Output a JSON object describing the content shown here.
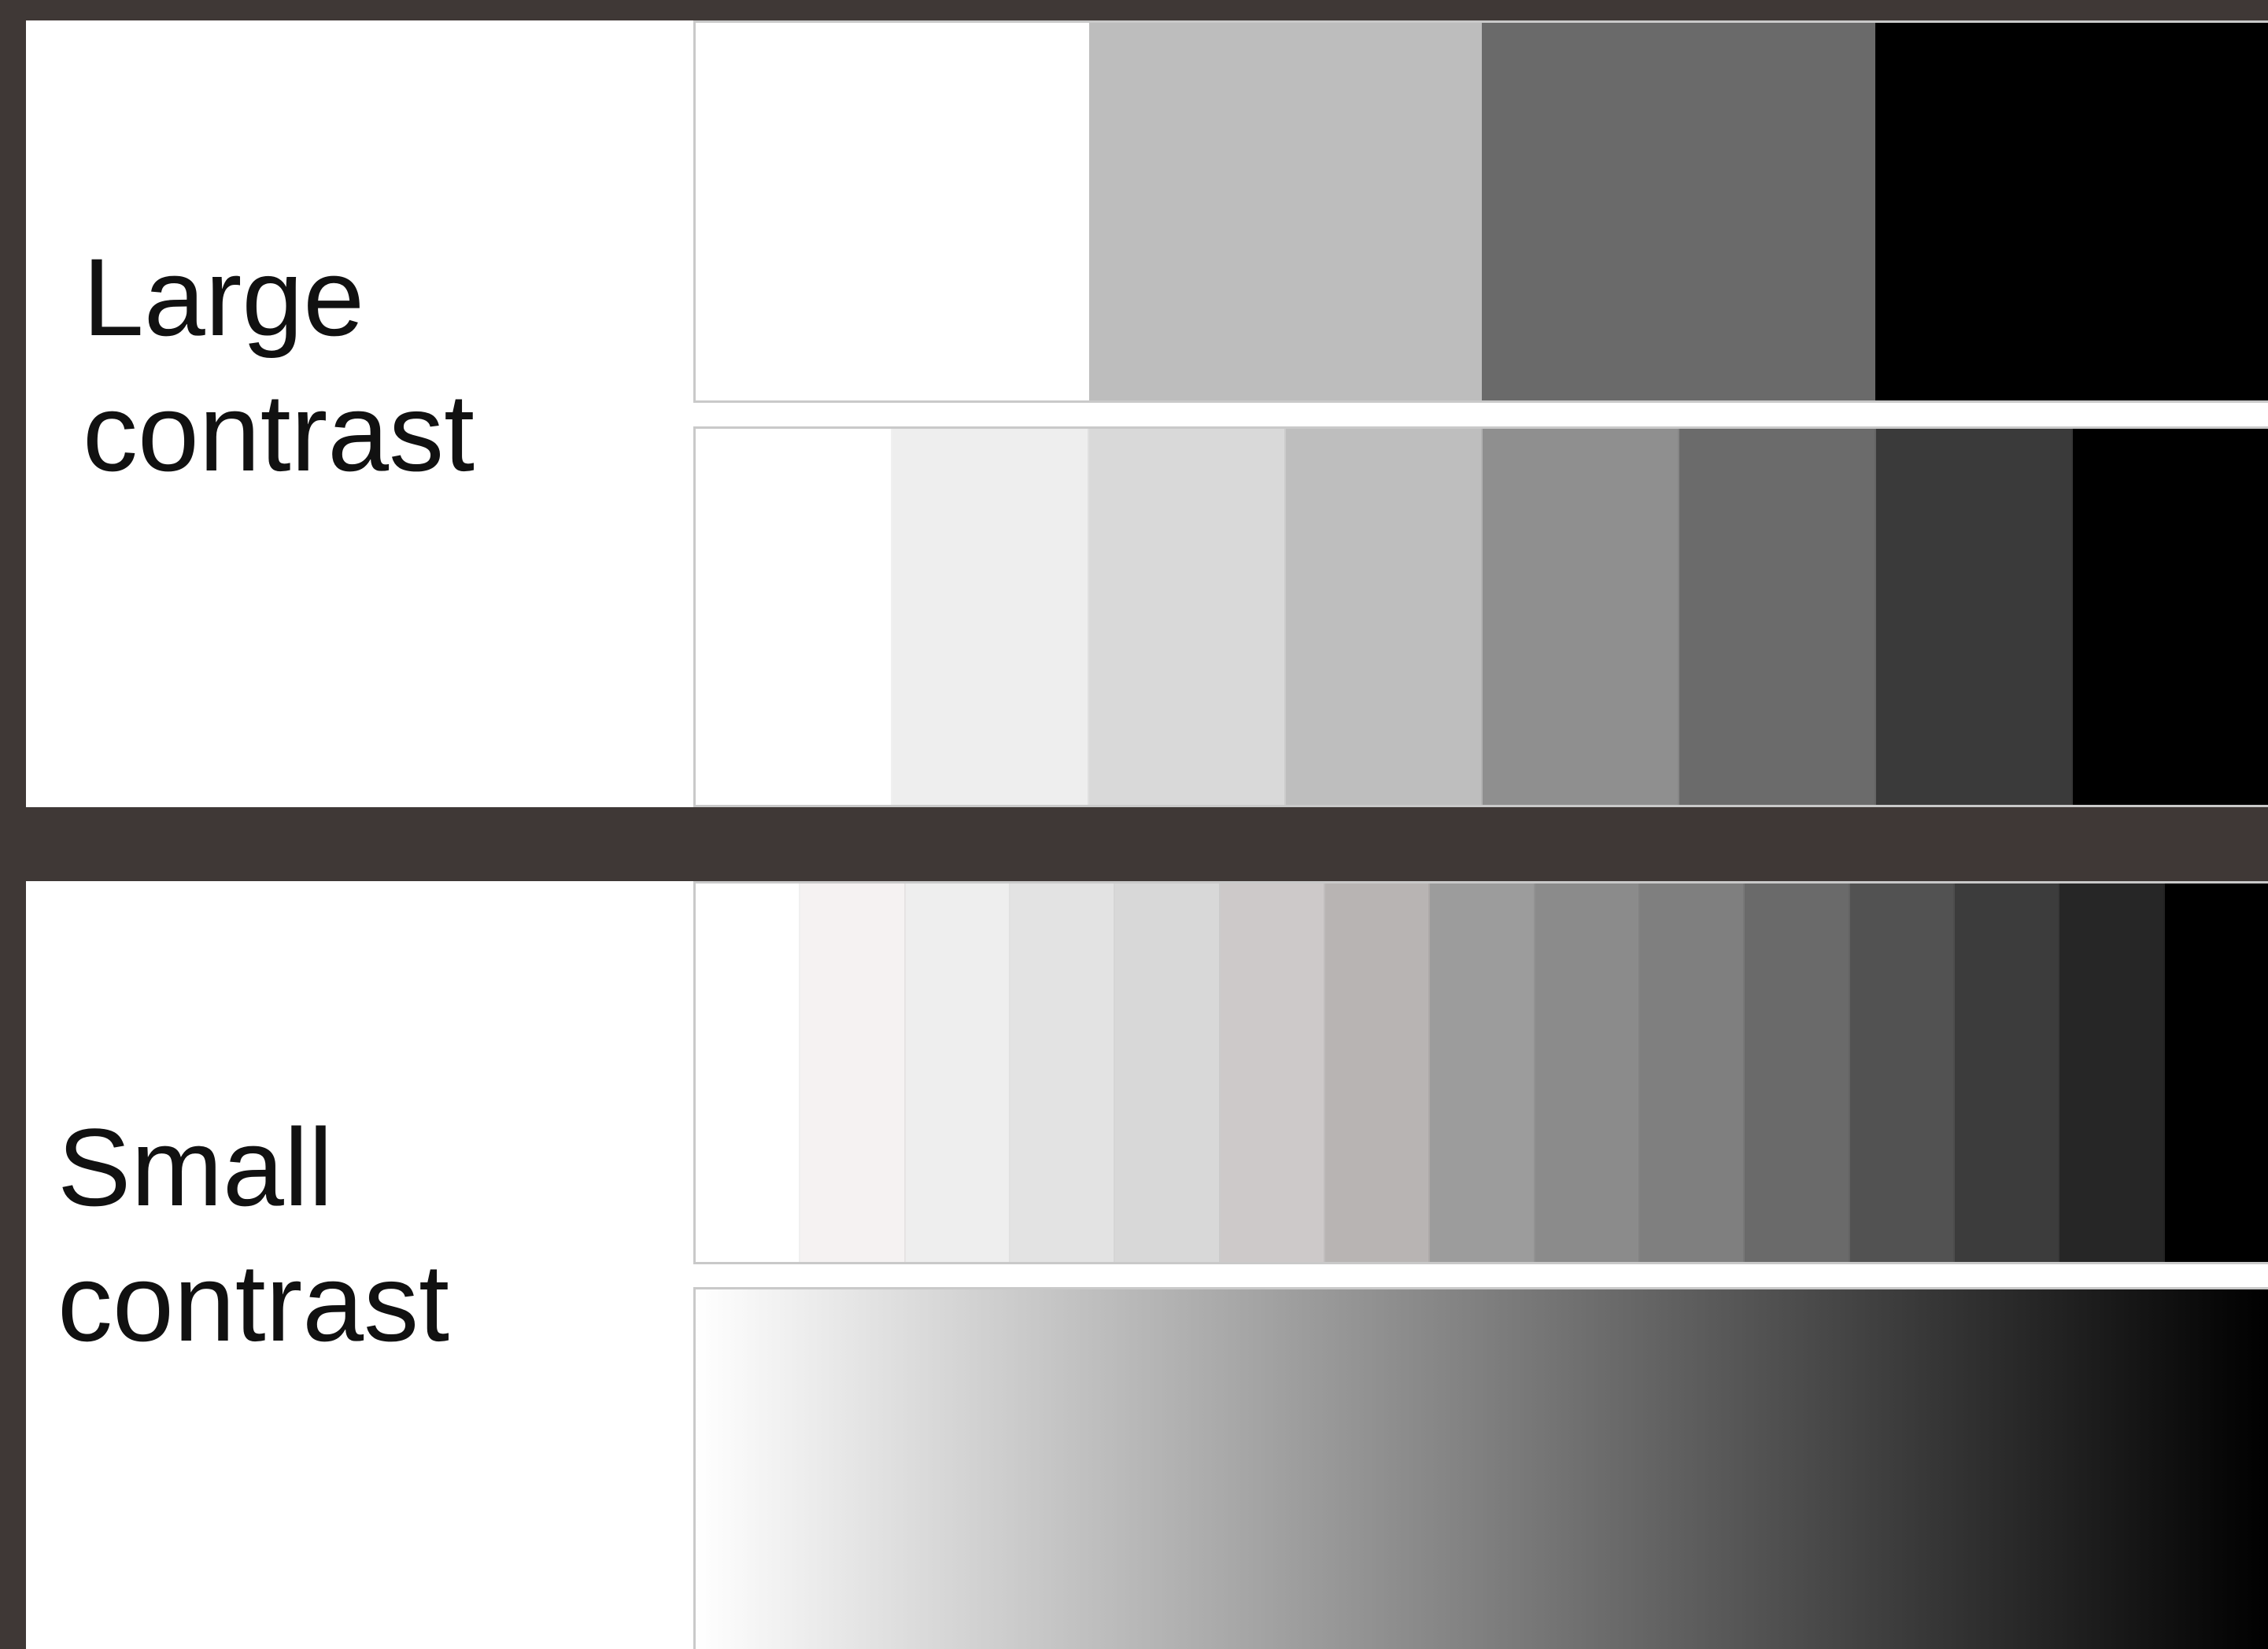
{
  "labels": {
    "large": "Large\ncontrast",
    "small": "Small\ncontrast"
  },
  "colors": {
    "background": "#3f3836",
    "panel": "#ffffff",
    "strip_border": "#c9c9c9"
  },
  "scales": {
    "four_step": [
      "#ffffff",
      "#bdbdbd",
      "#6a6a6a",
      "#000000"
    ],
    "eight_step": [
      "#ffffff",
      "#eeeeee",
      "#d9d9d9",
      "#bebebe",
      "#8f8f8f",
      "#6b6b6b",
      "#3a3a3a",
      "#000000"
    ],
    "fifteen_step": [
      "#ffffff",
      "#f5f2f2",
      "#eeeeee",
      "#e3e3e3",
      "#d8d8d8",
      "#cdc9c9",
      "#b8b4b3",
      "#9c9c9c",
      "#8b8b8b",
      "#7f7f7f",
      "#6a6a6a",
      "#525252",
      "#3c3c3c",
      "#262626",
      "#000000"
    ],
    "gradient": {
      "from": "#ffffff",
      "to": "#000000"
    }
  }
}
